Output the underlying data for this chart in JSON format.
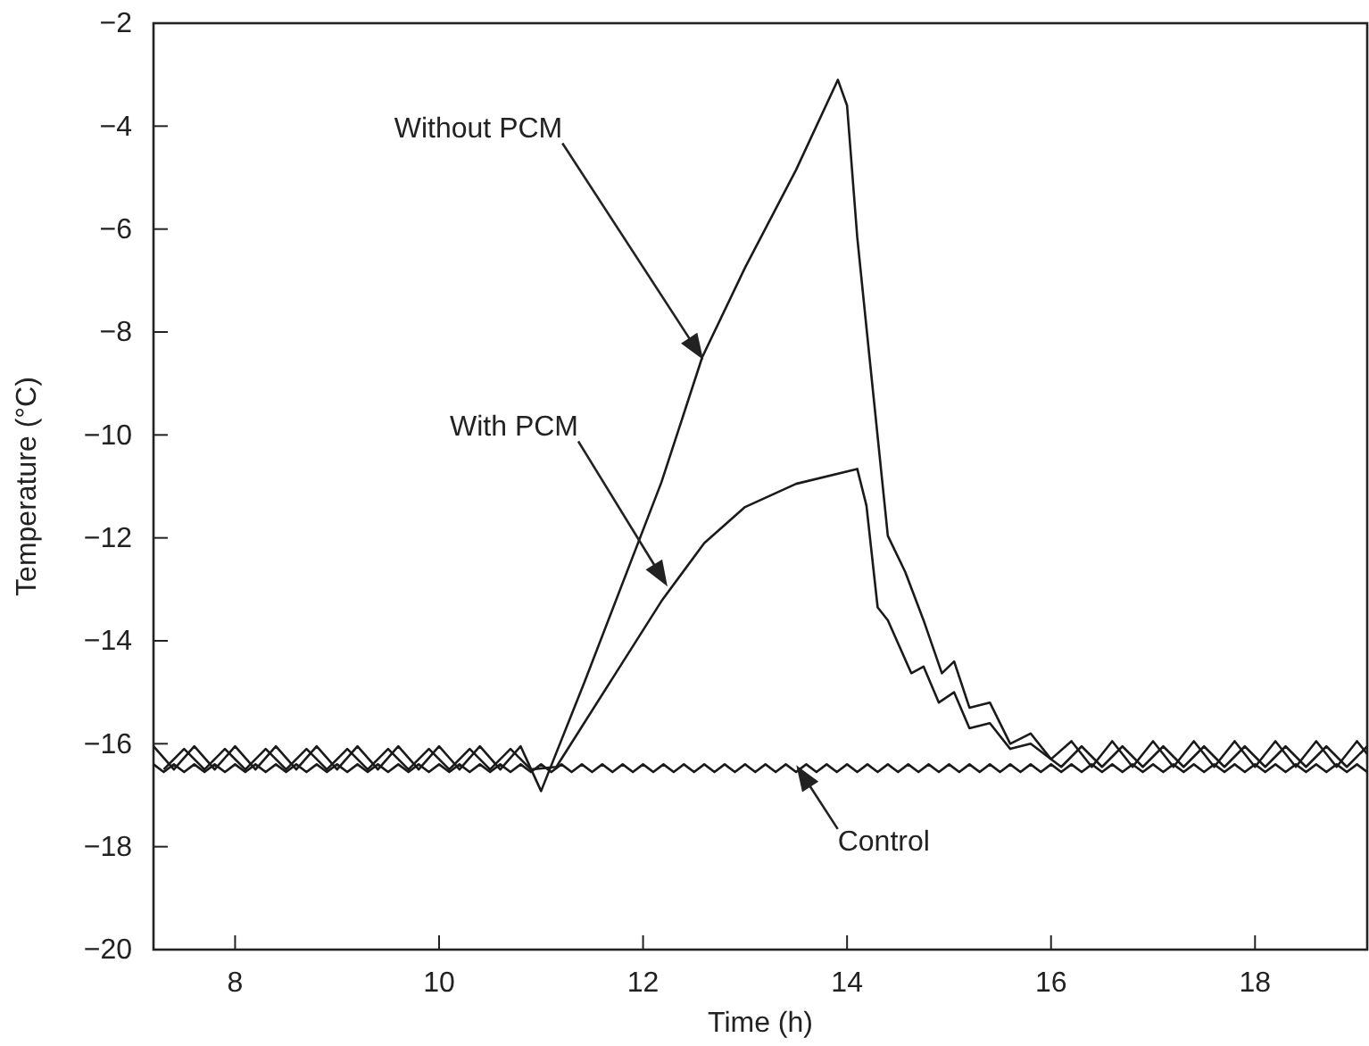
{
  "chart_data": {
    "type": "line",
    "xlabel": "Time (h)",
    "ylabel": "Temperature (°C)",
    "xlim": [
      7.2,
      19.1
    ],
    "xticks": [
      8,
      10,
      12,
      14,
      16,
      18
    ],
    "ylim": [
      -20,
      -2
    ],
    "yticks": [
      {
        "value": -20,
        "label": "−20"
      },
      {
        "value": -18,
        "label": "−18"
      },
      {
        "value": -16,
        "label": "−16"
      },
      {
        "value": -14,
        "label": "−14"
      },
      {
        "value": -12,
        "label": "−12"
      },
      {
        "value": -10,
        "label": "−10"
      },
      {
        "value": -8,
        "label": "−8"
      },
      {
        "value": -6,
        "label": "−6"
      },
      {
        "value": -4,
        "label": "−4"
      },
      {
        "value": -2,
        "label": "−2"
      }
    ],
    "grid": false,
    "marker": "none",
    "line_style": "solid",
    "series": [
      {
        "color": "#1a1a1a",
        "x": [
          7.2,
          7.4,
          7.6,
          7.8,
          8.0,
          8.2,
          8.4,
          8.6,
          8.8,
          9.0,
          9.2,
          9.4,
          9.6,
          9.8,
          10.0,
          10.2,
          10.4,
          10.6,
          10.8,
          11.0,
          11.44,
          12.18,
          12.58,
          13.0,
          13.5,
          13.91,
          14.0,
          14.1,
          14.22,
          14.4,
          14.57,
          14.75,
          14.93,
          15.05,
          15.2,
          15.4,
          15.6,
          15.8,
          16.0,
          16.2,
          16.4,
          16.6,
          16.8,
          17.0,
          17.2,
          17.4,
          17.6,
          17.8,
          18.0,
          18.2,
          18.4,
          18.6,
          18.8,
          19.0,
          19.1
        ],
        "values": [
          -16.05,
          -16.5,
          -16.05,
          -16.5,
          -16.05,
          -16.5,
          -16.05,
          -16.5,
          -16.05,
          -16.5,
          -16.05,
          -16.5,
          -16.05,
          -16.5,
          -16.05,
          -16.5,
          -16.05,
          -16.5,
          -16.05,
          -16.92,
          -14.73,
          -10.92,
          -8.49,
          -6.75,
          -4.85,
          -3.1,
          -3.6,
          -6.16,
          -8.49,
          -11.96,
          -12.66,
          -13.6,
          -14.63,
          -14.4,
          -15.3,
          -15.2,
          -16.0,
          -15.8,
          -16.3,
          -15.95,
          -16.45,
          -15.95,
          -16.45,
          -15.95,
          -16.45,
          -15.95,
          -16.45,
          -15.95,
          -16.45,
          -15.95,
          -16.45,
          -15.95,
          -16.45,
          -15.95,
          -16.2
        ]
      },
      {
        "color": "#1a1a1a",
        "x": [
          7.3,
          7.5,
          7.7,
          7.9,
          8.1,
          8.3,
          8.5,
          8.7,
          8.9,
          9.1,
          9.3,
          9.5,
          9.7,
          9.9,
          10.1,
          10.3,
          10.5,
          10.7,
          10.9,
          11.15,
          11.7,
          12.18,
          12.6,
          13.0,
          13.5,
          14.1,
          14.19,
          14.3,
          14.4,
          14.63,
          14.75,
          14.9,
          15.05,
          15.2,
          15.4,
          15.6,
          15.8,
          16.1,
          16.3,
          16.5,
          16.7,
          16.9,
          17.1,
          17.3,
          17.5,
          17.7,
          17.9,
          18.1,
          18.3,
          18.5,
          18.7,
          18.9,
          19.1
        ],
        "values": [
          -16.5,
          -16.1,
          -16.5,
          -16.1,
          -16.5,
          -16.1,
          -16.5,
          -16.1,
          -16.5,
          -16.1,
          -16.5,
          -16.1,
          -16.5,
          -16.1,
          -16.5,
          -16.1,
          -16.5,
          -16.1,
          -16.5,
          -16.45,
          -14.73,
          -13.23,
          -12.1,
          -11.4,
          -10.95,
          -10.66,
          -11.37,
          -13.35,
          -13.6,
          -14.63,
          -14.5,
          -15.2,
          -15.0,
          -15.7,
          -15.6,
          -16.1,
          -16.0,
          -16.45,
          -16.05,
          -16.45,
          -16.05,
          -16.45,
          -16.05,
          -16.45,
          -16.05,
          -16.45,
          -16.05,
          -16.45,
          -16.05,
          -16.45,
          -16.05,
          -16.45,
          -16.05
        ]
      },
      {
        "color": "#1a1a1a",
        "x": [
          7.2,
          7.3,
          7.4,
          7.5,
          7.6,
          7.7,
          7.8,
          7.9,
          8.0,
          8.1,
          8.2,
          8.3,
          8.4,
          8.5,
          8.6,
          8.7,
          8.8,
          8.9,
          9.0,
          9.1,
          9.2,
          9.3,
          9.4,
          9.5,
          9.6,
          9.7,
          9.8,
          9.9,
          10.0,
          10.1,
          10.2,
          10.3,
          10.4,
          10.5,
          10.6,
          10.7,
          10.8,
          10.9,
          11.0,
          11.1,
          11.2,
          11.3,
          11.4,
          11.5,
          11.6,
          11.7,
          11.8,
          11.9,
          12.0,
          12.1,
          12.2,
          12.3,
          12.4,
          12.5,
          12.6,
          12.7,
          12.8,
          12.9,
          13.0,
          13.1,
          13.2,
          13.3,
          13.4,
          13.5,
          13.6,
          13.7,
          13.8,
          13.9,
          14.0,
          14.1,
          14.2,
          14.3,
          14.4,
          14.5,
          14.6,
          14.7,
          14.8,
          14.9,
          15.0,
          15.1,
          15.2,
          15.3,
          15.4,
          15.5,
          15.6,
          15.7,
          15.8,
          15.9,
          16.0,
          16.1,
          16.2,
          16.3,
          16.4,
          16.5,
          16.6,
          16.7,
          16.8,
          16.9,
          17.0,
          17.1,
          17.2,
          17.3,
          17.4,
          17.5,
          17.6,
          17.7,
          17.8,
          17.9,
          18.0,
          18.1,
          18.2,
          18.3,
          18.4,
          18.5,
          18.6,
          18.7,
          18.8,
          18.9,
          19.0,
          19.1
        ],
        "values": [
          -16.4,
          -16.55,
          -16.4,
          -16.55,
          -16.4,
          -16.55,
          -16.4,
          -16.55,
          -16.4,
          -16.55,
          -16.4,
          -16.55,
          -16.4,
          -16.55,
          -16.4,
          -16.55,
          -16.4,
          -16.55,
          -16.4,
          -16.55,
          -16.4,
          -16.55,
          -16.4,
          -16.55,
          -16.4,
          -16.55,
          -16.4,
          -16.55,
          -16.4,
          -16.55,
          -16.4,
          -16.55,
          -16.4,
          -16.55,
          -16.4,
          -16.55,
          -16.4,
          -16.55,
          -16.4,
          -16.55,
          -16.4,
          -16.55,
          -16.4,
          -16.55,
          -16.4,
          -16.55,
          -16.4,
          -16.55,
          -16.4,
          -16.55,
          -16.4,
          -16.55,
          -16.4,
          -16.55,
          -16.4,
          -16.55,
          -16.4,
          -16.55,
          -16.4,
          -16.55,
          -16.4,
          -16.55,
          -16.4,
          -16.55,
          -16.4,
          -16.55,
          -16.4,
          -16.55,
          -16.4,
          -16.55,
          -16.4,
          -16.55,
          -16.4,
          -16.55,
          -16.4,
          -16.55,
          -16.4,
          -16.55,
          -16.4,
          -16.55,
          -16.4,
          -16.55,
          -16.4,
          -16.55,
          -16.4,
          -16.55,
          -16.4,
          -16.55,
          -16.4,
          -16.55,
          -16.4,
          -16.55,
          -16.4,
          -16.55,
          -16.4,
          -16.55,
          -16.4,
          -16.55,
          -16.4,
          -16.55,
          -16.4,
          -16.55,
          -16.4,
          -16.55,
          -16.4,
          -16.55,
          -16.4,
          -16.55,
          -16.4,
          -16.55,
          -16.4,
          -16.55,
          -16.4,
          -16.55,
          -16.4,
          -16.55,
          -16.4,
          -16.55,
          -16.4,
          -16.55
        ]
      }
    ],
    "annotations": [
      "Without PCM",
      "With PCM",
      {
        "text": "Control",
        "x": 13.52,
        "y": -16.47
      }
    ]
  }
}
